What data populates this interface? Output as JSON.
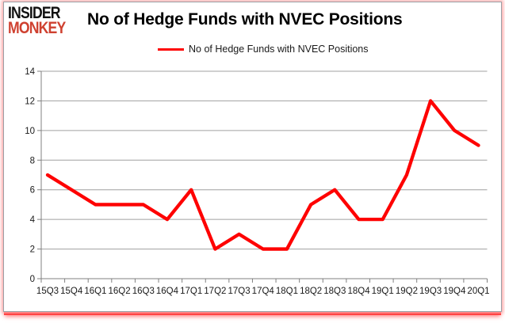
{
  "logo": {
    "line1": "INSIDER",
    "line2": "MONKEY"
  },
  "title": "No of Hedge Funds with NVEC Positions",
  "legend": {
    "label": "No of Hedge Funds with NVEC Positions"
  },
  "colors": {
    "series_red": "#fe0101",
    "logo_red": "#cf4130",
    "gridline": "#a0a0a0",
    "axis": "#808080",
    "text": "#1a1a1a",
    "frame_border": "#9aa0a6",
    "frame_glow": "#ffb0b0",
    "frame_band": "#ff1515"
  },
  "chart_data": {
    "type": "line",
    "title": "No of Hedge Funds with NVEC Positions",
    "categories": [
      "15Q3",
      "15Q4",
      "16Q1",
      "16Q2",
      "16Q3",
      "16Q4",
      "17Q1",
      "17Q2",
      "17Q3",
      "17Q4",
      "18Q1",
      "18Q2",
      "18Q3",
      "18Q4",
      "19Q1",
      "19Q2",
      "19Q3",
      "19Q4",
      "20Q1"
    ],
    "series": [
      {
        "name": "No of Hedge Funds with NVEC Positions",
        "color": "#fe0101",
        "values": [
          7,
          6,
          5,
          5,
          5,
          4,
          6,
          2,
          3,
          2,
          2,
          5,
          6,
          4,
          4,
          7,
          12,
          10,
          9
        ]
      }
    ],
    "xlabel": "",
    "ylabel": "",
    "ylim": [
      0,
      14
    ],
    "yticks": [
      0,
      2,
      4,
      6,
      8,
      10,
      12,
      14
    ],
    "grid": true,
    "legend_position": "top"
  }
}
